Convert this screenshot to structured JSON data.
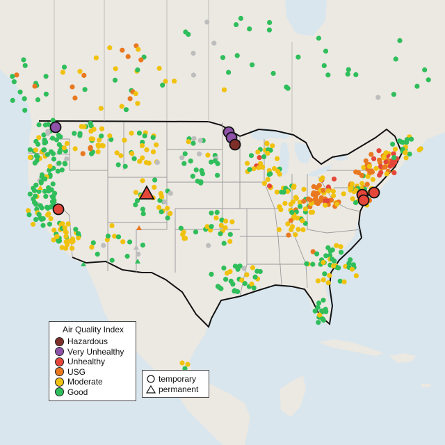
{
  "legend": {
    "title": "Air Quality Index",
    "categories": [
      {
        "label": "Hazardous",
        "color": "#7e2f2a"
      },
      {
        "label": "Very Unhealthy",
        "color": "#8e52a8"
      },
      {
        "label": "Unhealthy",
        "color": "#e4473a"
      },
      {
        "label": "USG",
        "color": "#e9781f"
      },
      {
        "label": "Moderate",
        "color": "#f0c20f"
      },
      {
        "label": "Good",
        "color": "#2fbe5b"
      }
    ],
    "no_data_color": "#bdbdbd"
  },
  "type_legend": {
    "temporary_label": "temporary",
    "permanent_label": "permanent",
    "temporary_icon": "circle-icon",
    "permanent_icon": "triangle-icon"
  },
  "colors": {
    "water": "#d9e6ee",
    "land": "#ece8e2",
    "border": "#111111"
  }
}
